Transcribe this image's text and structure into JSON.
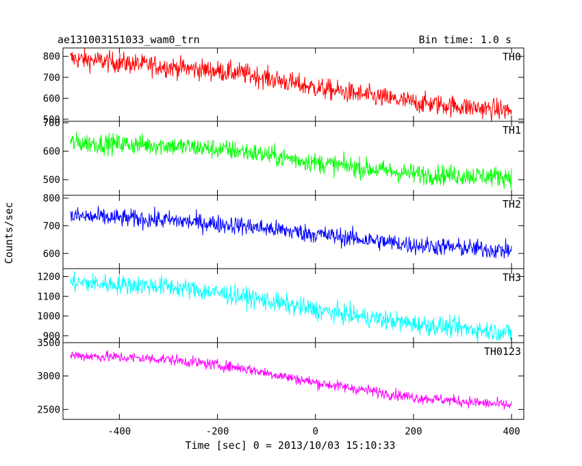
{
  "header": {
    "title": "ae131003151033_wam0_trn",
    "bin_time": "Bin time: 1.0 s"
  },
  "chart_data": {
    "type": "line",
    "xlabel": "Time [sec] 0 = 2013/10/03 15:10:33",
    "ylabel": "Counts/sec",
    "xlim": [
      -515,
      425
    ],
    "xticks": [
      -400,
      -200,
      0,
      200,
      400
    ],
    "x": {
      "start": -500,
      "end": 400,
      "step": 1
    },
    "panels": [
      {
        "name": "TH0",
        "color": "#ff0000",
        "ylim": [
          490,
          840
        ],
        "yticks": [
          500,
          600,
          700,
          800
        ],
        "trend": [
          [
            -500,
            790
          ],
          [
            -300,
            750
          ],
          [
            -150,
            720
          ],
          [
            0,
            650
          ],
          [
            200,
            580
          ],
          [
            400,
            540
          ]
        ],
        "noise": 45
      },
      {
        "name": "TH1",
        "color": "#00ff00",
        "ylim": [
          445,
          705
        ],
        "yticks": [
          500,
          600,
          700
        ],
        "trend": [
          [
            -500,
            630
          ],
          [
            -300,
            620
          ],
          [
            -150,
            600
          ],
          [
            0,
            560
          ],
          [
            200,
            520
          ],
          [
            400,
            510
          ]
        ],
        "noise": 32
      },
      {
        "name": "TH2",
        "color": "#0000ff",
        "ylim": [
          545,
          810
        ],
        "yticks": [
          600,
          700,
          800
        ],
        "trend": [
          [
            -500,
            735
          ],
          [
            -300,
            720
          ],
          [
            -150,
            700
          ],
          [
            0,
            670
          ],
          [
            200,
            630
          ],
          [
            400,
            610
          ]
        ],
        "noise": 30
      },
      {
        "name": "TH3",
        "color": "#00ffff",
        "ylim": [
          865,
          1240
        ],
        "yticks": [
          900,
          1000,
          1100,
          1200
        ],
        "trend": [
          [
            -500,
            1170
          ],
          [
            -300,
            1150
          ],
          [
            -150,
            1100
          ],
          [
            0,
            1030
          ],
          [
            200,
            960
          ],
          [
            400,
            915
          ]
        ],
        "noise": 45
      },
      {
        "name": "TH0123",
        "color": "#ff00ff",
        "ylim": [
          2350,
          3500
        ],
        "yticks": [
          2500,
          3000,
          3500
        ],
        "trend": [
          [
            -500,
            3310
          ],
          [
            -300,
            3250
          ],
          [
            -150,
            3120
          ],
          [
            0,
            2900
          ],
          [
            200,
            2680
          ],
          [
            400,
            2560
          ]
        ],
        "noise": 75
      }
    ]
  }
}
